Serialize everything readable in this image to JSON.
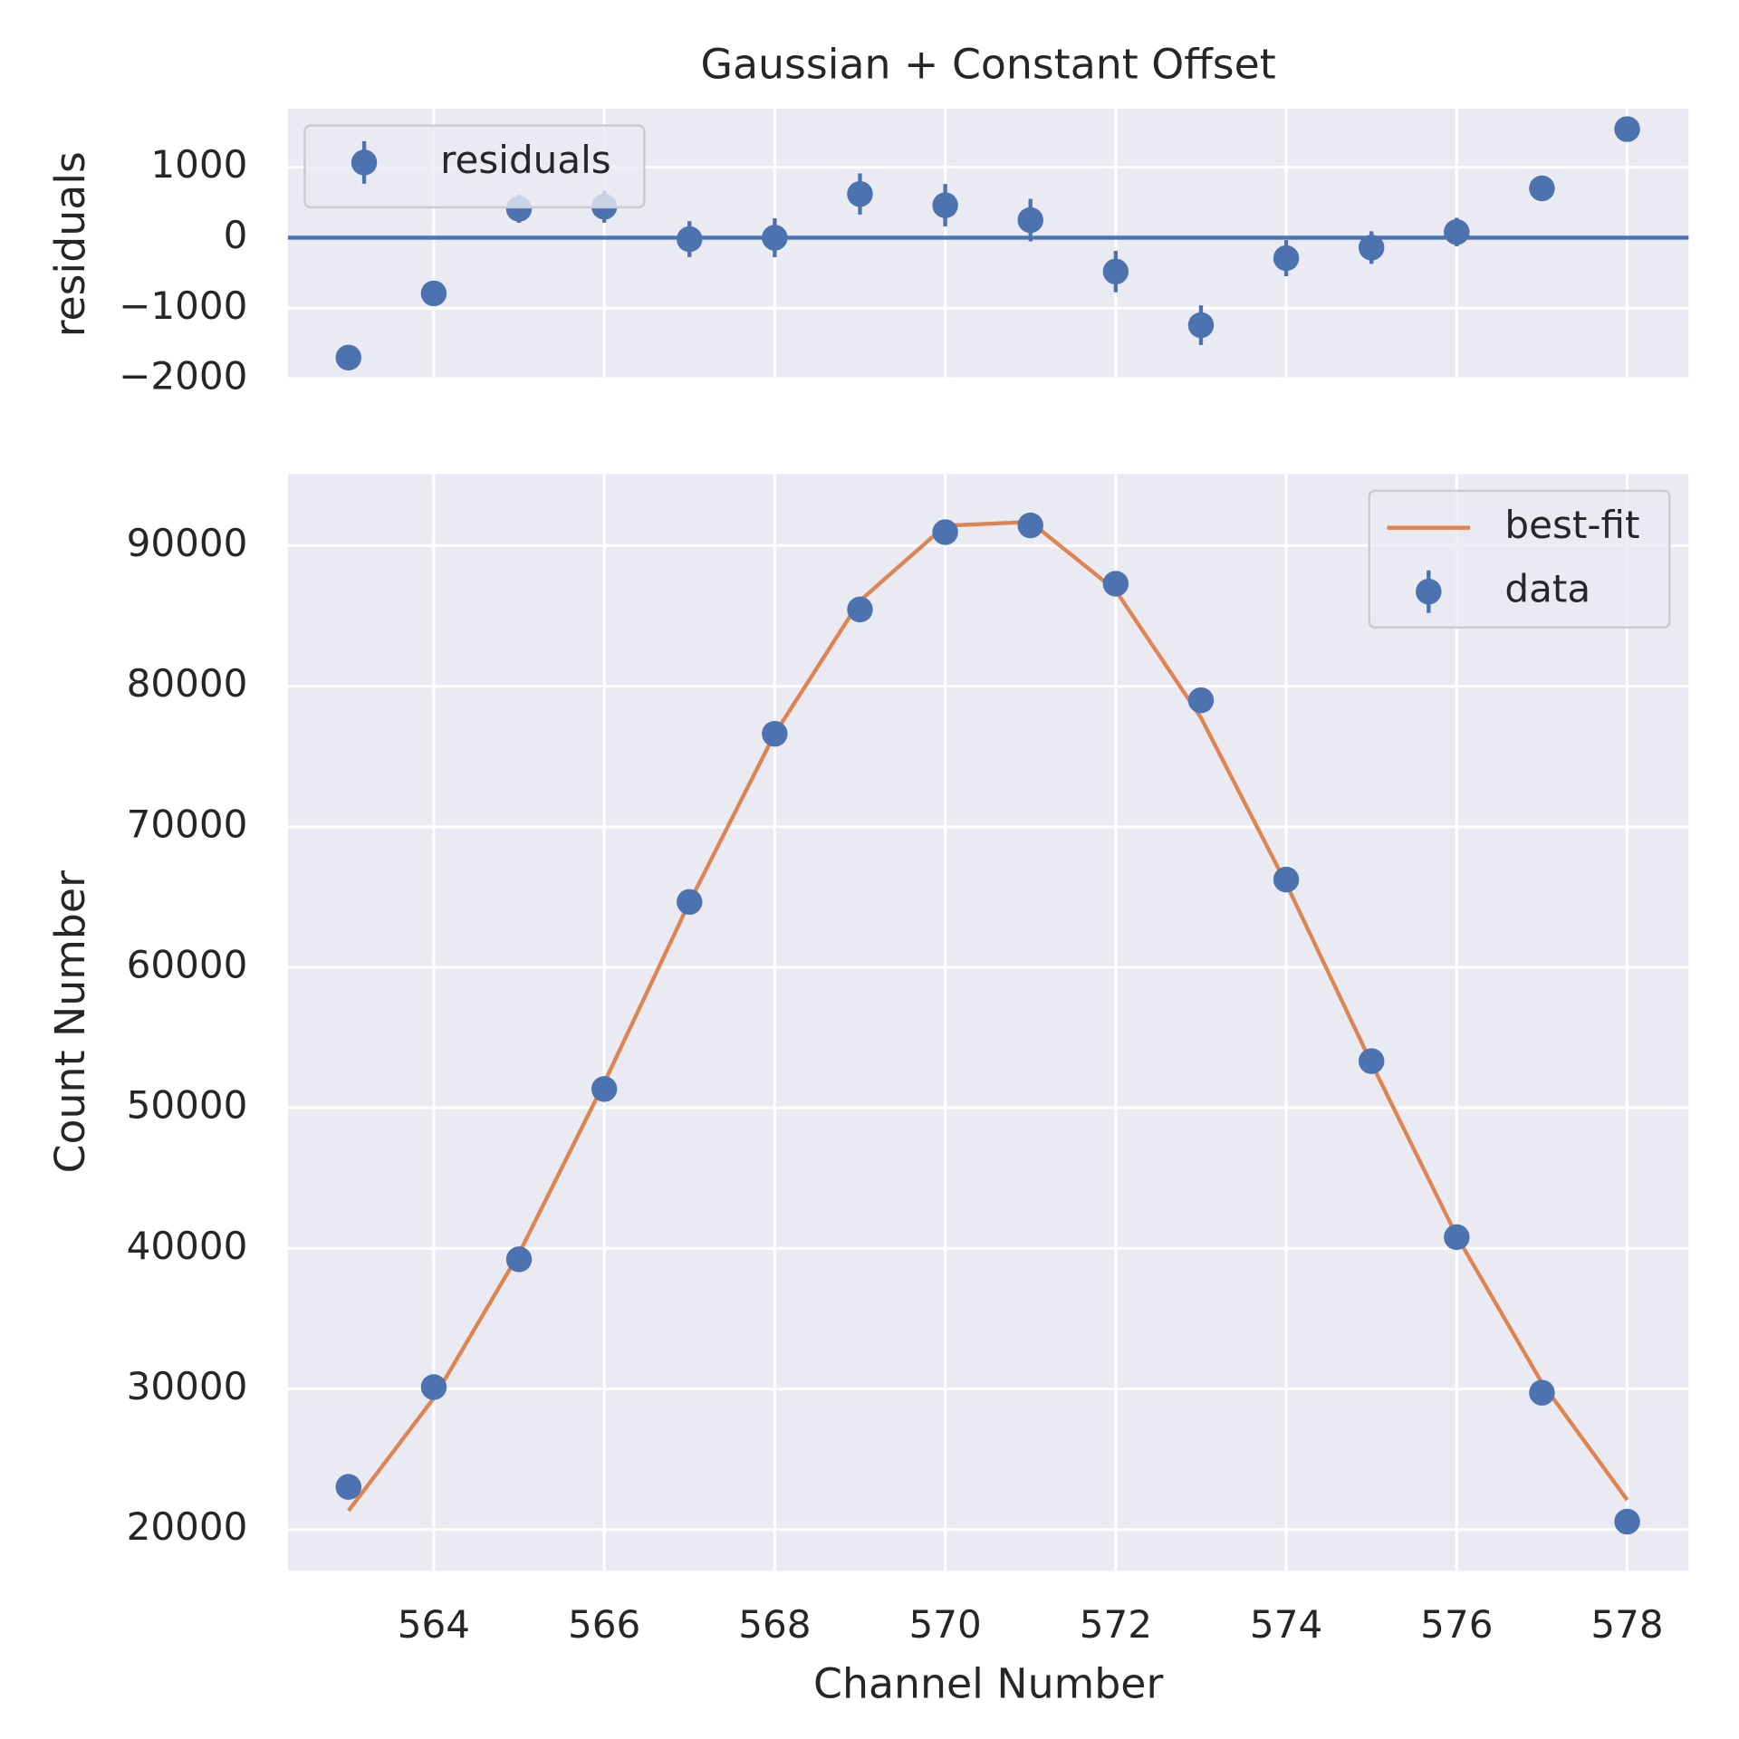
{
  "chart_data": [
    {
      "type": "errorbar",
      "title": "Gaussian + Constant Offset",
      "ylabel": "residuals",
      "x": [
        563,
        564,
        565,
        566,
        567,
        568,
        569,
        570,
        571,
        572,
        573,
        574,
        575,
        576,
        577,
        578
      ],
      "series": [
        {
          "name": "residuals",
          "style": "points",
          "color": "#4c72b0",
          "values": [
            -1700,
            -790,
            410,
            440,
            -20,
            0,
            620,
            460,
            250,
            -480,
            -1240,
            -290,
            -140,
            80,
            700,
            1540
          ],
          "errors": [
            152,
            174,
            198,
            227,
            254,
            277,
            292,
            302,
            302,
            295,
            281,
            257,
            231,
            202,
            172,
            143
          ]
        }
      ],
      "hline": 0,
      "hline_color": "#4c72b0",
      "xlim": [
        562.29,
        578.72
      ],
      "ylim": [
        -2000,
        1830
      ],
      "xticks": [
        564,
        566,
        568,
        570,
        572,
        574,
        576,
        578
      ],
      "show_xticklabels": false,
      "yticks": [
        {
          "value": -2000,
          "label": "−2000"
        },
        {
          "value": -1000,
          "label": "−1000"
        },
        0,
        1000
      ],
      "grid": true,
      "legend": "upper-left"
    },
    {
      "type": "errorbar",
      "xlabel": "Channel Number",
      "ylabel": "Count Number",
      "x": [
        563,
        564,
        565,
        566,
        567,
        568,
        569,
        570,
        571,
        572,
        573,
        574,
        575,
        576,
        577,
        578
      ],
      "series": [
        {
          "name": "best-fit",
          "style": "line",
          "color": "#dd8452",
          "values": [
            21330,
            29340,
            39630,
            51780,
            64630,
            76610,
            86080,
            91420,
            91690,
            86810,
            77760,
            65950,
            53180,
            40880,
            30430,
            22100
          ]
        },
        {
          "name": "data",
          "style": "points",
          "color": "#4c72b0",
          "values": [
            23030,
            30130,
            39220,
            51340,
            64650,
            76610,
            85460,
            90960,
            91440,
            87290,
            79000,
            66240,
            53320,
            40800,
            29730,
            20560
          ],
          "errors": [
            152,
            174,
            198,
            227,
            254,
            277,
            292,
            302,
            302,
            295,
            281,
            257,
            231,
            202,
            172,
            143
          ]
        }
      ],
      "xlim": [
        562.29,
        578.72
      ],
      "ylim": [
        17050,
        95100
      ],
      "xticks": [
        564,
        566,
        568,
        570,
        572,
        574,
        576,
        578
      ],
      "show_xticklabels": true,
      "yticks": [
        20000,
        30000,
        40000,
        50000,
        60000,
        70000,
        80000,
        90000
      ],
      "grid": true,
      "legend": "upper-right"
    }
  ]
}
